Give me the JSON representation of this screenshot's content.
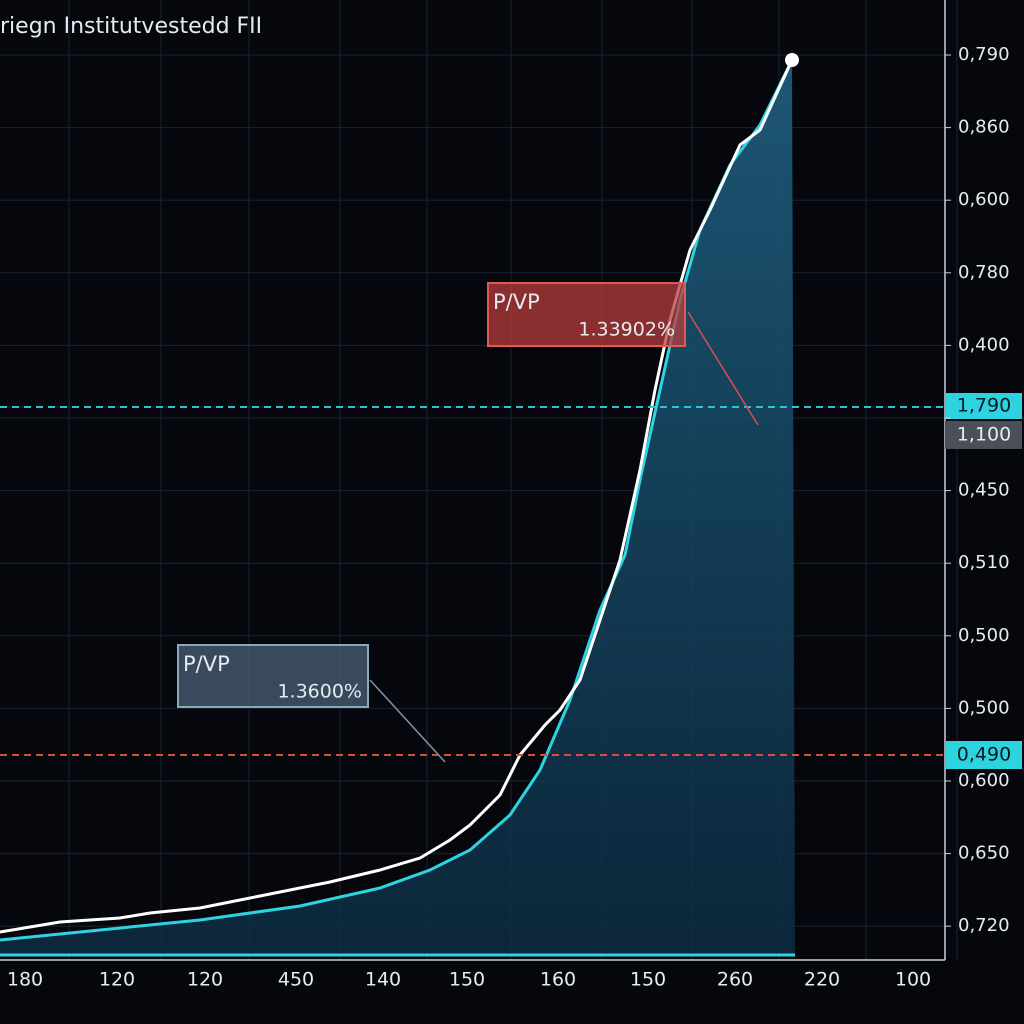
{
  "title": "riegn Institutvestedd FII",
  "y_axis_labels": [
    "0,790",
    "0,860",
    "0,600",
    "0,780",
    "0,400",
    null,
    "0,450",
    "0,510",
    "0,500",
    "0,500",
    "0,600",
    "0,650",
    "0,720"
  ],
  "x_axis_labels": [
    "180",
    "120",
    "120",
    "450",
    "140",
    "150",
    "160",
    "150",
    "260",
    "220",
    "100"
  ],
  "price_tags": [
    {
      "label": "1,790"
    },
    {
      "label": "1,100"
    },
    {
      "label": "0,490"
    }
  ],
  "annotations": [
    {
      "title": "P/VP",
      "value": "1.33902%"
    },
    {
      "title": "P/VP",
      "value": "1.3600%"
    }
  ]
}
